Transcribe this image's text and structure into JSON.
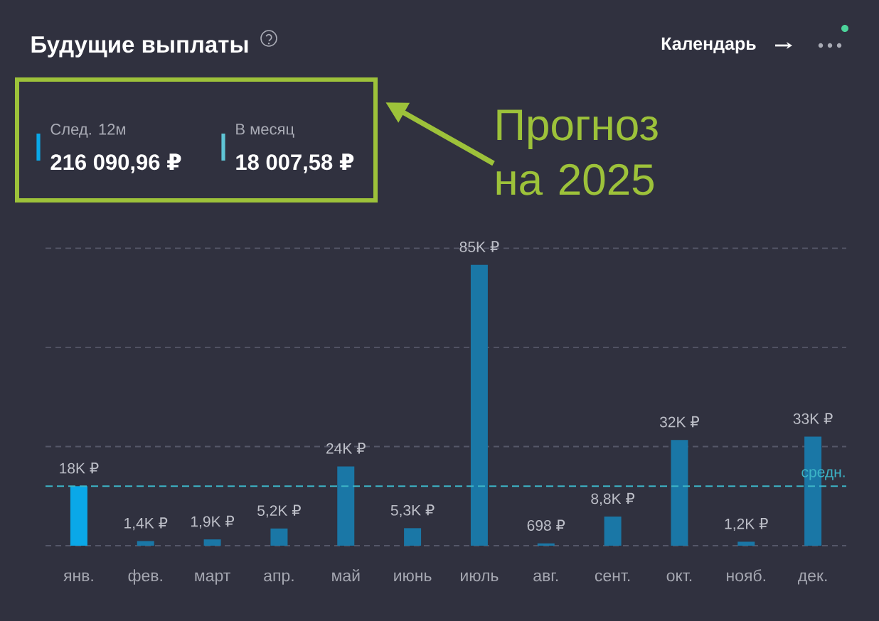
{
  "chart_data": {
    "type": "bar",
    "title": "Будущие выплаты",
    "categories": [
      "янв.",
      "фев.",
      "март",
      "апр.",
      "май",
      "июнь",
      "июль",
      "авг.",
      "сент.",
      "окт.",
      "нояб.",
      "дек."
    ],
    "values": [
      18000,
      1400,
      1900,
      5200,
      24000,
      5300,
      85000,
      698,
      8800,
      32000,
      1200,
      33000
    ],
    "value_labels": [
      "18K ₽",
      "1,4K ₽",
      "1,9K ₽",
      "5,2K ₽",
      "24K ₽",
      "5,3K ₽",
      "85K ₽",
      "698 ₽",
      "8,8K ₽",
      "32K ₽",
      "1,2K ₽",
      "33K ₽"
    ],
    "colors": [
      "#0aa8e8",
      "#1a77a6",
      "#1a77a6",
      "#1a77a6",
      "#1a77a6",
      "#1a77a6",
      "#1a77a6",
      "#1a77a6",
      "#1a77a6",
      "#1a77a6",
      "#1a77a6",
      "#1a77a6"
    ],
    "ylim": [
      0,
      90000
    ],
    "yticks": [
      {
        "value": 0,
        "label": null
      },
      {
        "value": 30000,
        "label": null
      },
      {
        "value": 60000,
        "label": null
      },
      {
        "value": 90000,
        "label": null
      }
    ],
    "tick_labels": "x",
    "grid": "y",
    "ref_lines": [
      {
        "axis": "y",
        "value": 18007.58,
        "label": "средн.",
        "color": "#3cb4c6",
        "line_style": "dashed"
      }
    ],
    "annotations": [
      "Календарь",
      "След. 12м",
      "216 090,96 ₽",
      "В месяц",
      "18 007,58 ₽",
      "Прогноз на 2025"
    ]
  }
}
